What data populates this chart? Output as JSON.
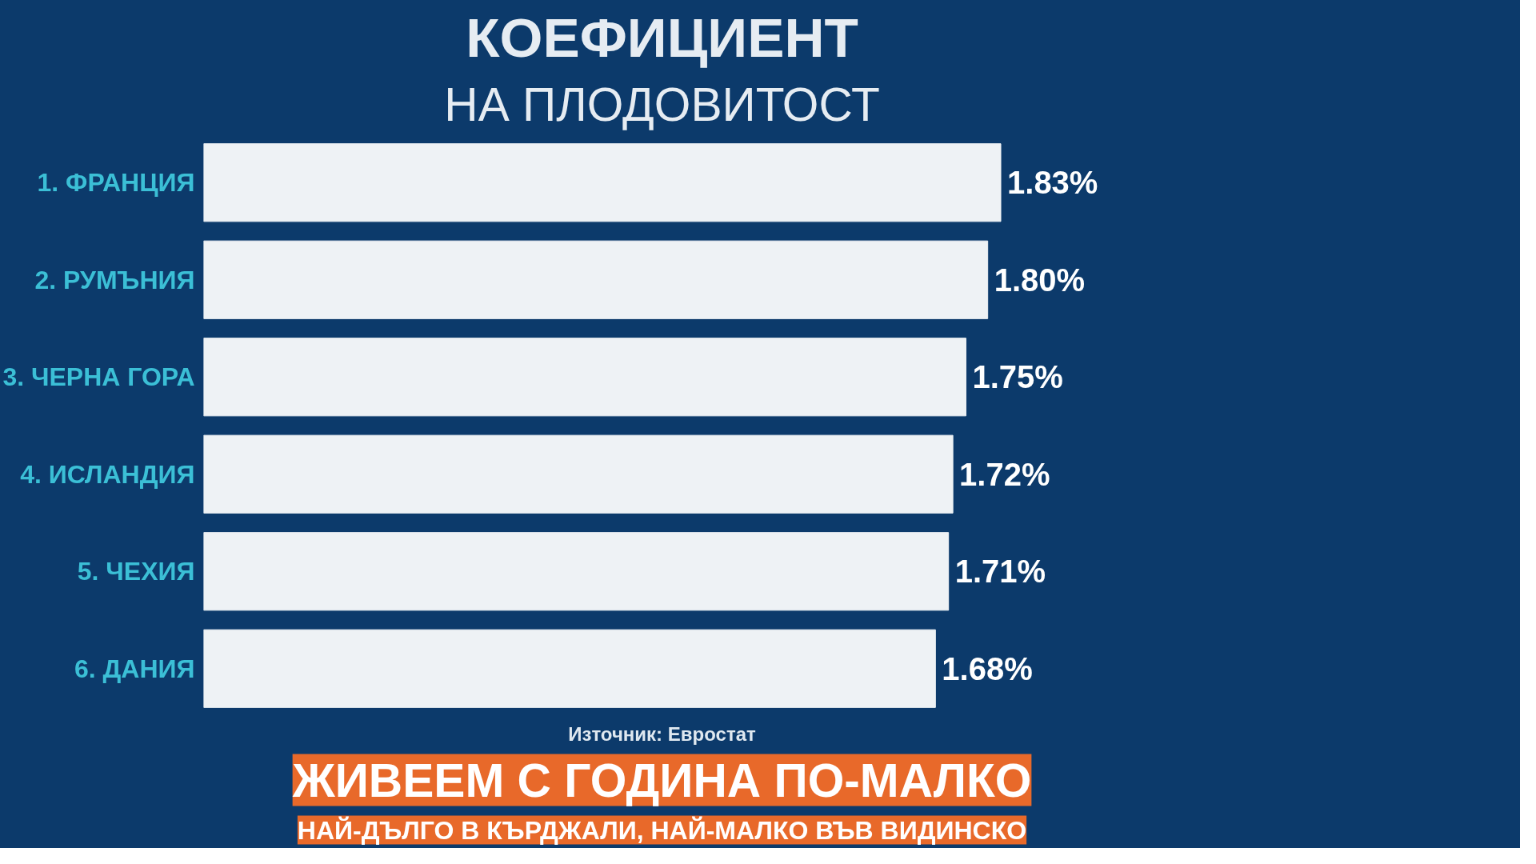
{
  "chart_data": {
    "type": "bar",
    "orientation": "horizontal",
    "title": "КОЕФИЦИЕНТ",
    "subtitle": "НА ПЛОДОВИТОСТ",
    "categories": [
      "1. ФРАНЦИЯ",
      "2. РУМЪНИЯ",
      "3. ЧЕРНА ГОРА",
      "4. ИСЛАНДИЯ",
      "5. ЧЕХИЯ",
      "6. ДАНИЯ"
    ],
    "values": [
      1.83,
      1.8,
      1.75,
      1.72,
      1.71,
      1.68
    ],
    "value_labels": [
      "1.83%",
      "1.80%",
      "1.75%",
      "1.72%",
      "1.71%",
      "1.68%"
    ],
    "color": "#eef2f5",
    "tick_labels": "y",
    "grid": false,
    "annotations": [
      "Източник: Евростат",
      "ЖИВЕЕМ С ГОДИНА ПО-МАЛКО",
      "НАЙ-ДЪЛГО В КЪРДЖАЛИ, НАЙ-МАЛКО ВЪВ ВИДИНСКО"
    ]
  }
}
